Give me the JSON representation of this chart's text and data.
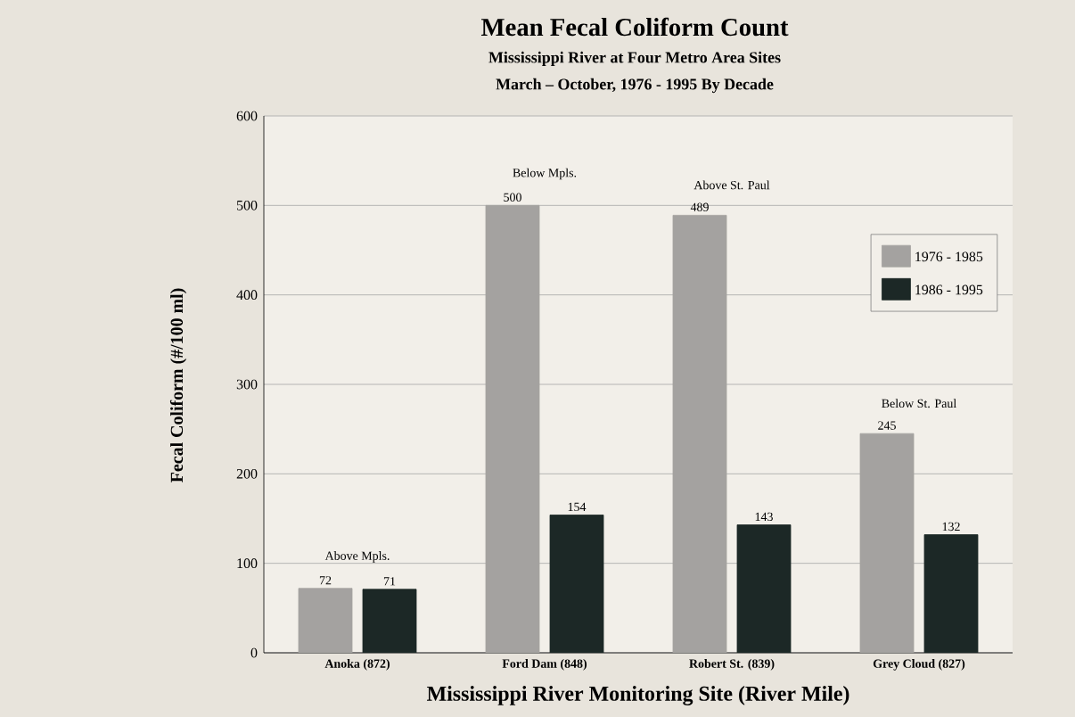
{
  "chart_data": {
    "type": "bar",
    "title": "Mean Fecal Coliform Count",
    "subtitle": "Mississippi River at Four Metro Area Sites",
    "xlabel": "Mississippi River Monitoring Site (River Mile)",
    "ylabel": "Fecal Coliform (#/100 ml)",
    "categories": [
      "Anoka (872)",
      "Ford Dam (848)",
      "Robert St. (839)",
      "Grey Cloud (827)"
    ],
    "series": [
      {
        "name": "1976 - 1985",
        "color": "#a4a2a0",
        "values": [
          72,
          500,
          489,
          245
        ]
      },
      {
        "name": "1986 - 1995",
        "color": "#1c2826",
        "values": [
          71,
          154,
          143,
          132
        ]
      }
    ],
    "annotations": [
      "March – October, 1976 - 1995 By Decade",
      {
        "text": "Above Mpls.",
        "x": "Anoka (872)",
        "y": 72
      },
      {
        "text": "Below Mpls.",
        "x": "Ford Dam (848)",
        "y": 500
      },
      {
        "text": "Above St. Paul",
        "x": "Robert St. (839)",
        "y": 489
      },
      {
        "text": "Below St. Paul",
        "x": "Grey Cloud (827)",
        "y": 245
      }
    ],
    "ylim": [
      0,
      600
    ],
    "yticks": [
      0,
      100,
      200,
      300,
      400,
      500,
      600
    ],
    "grid": "y",
    "legend": "right",
    "data_labels": true
  }
}
